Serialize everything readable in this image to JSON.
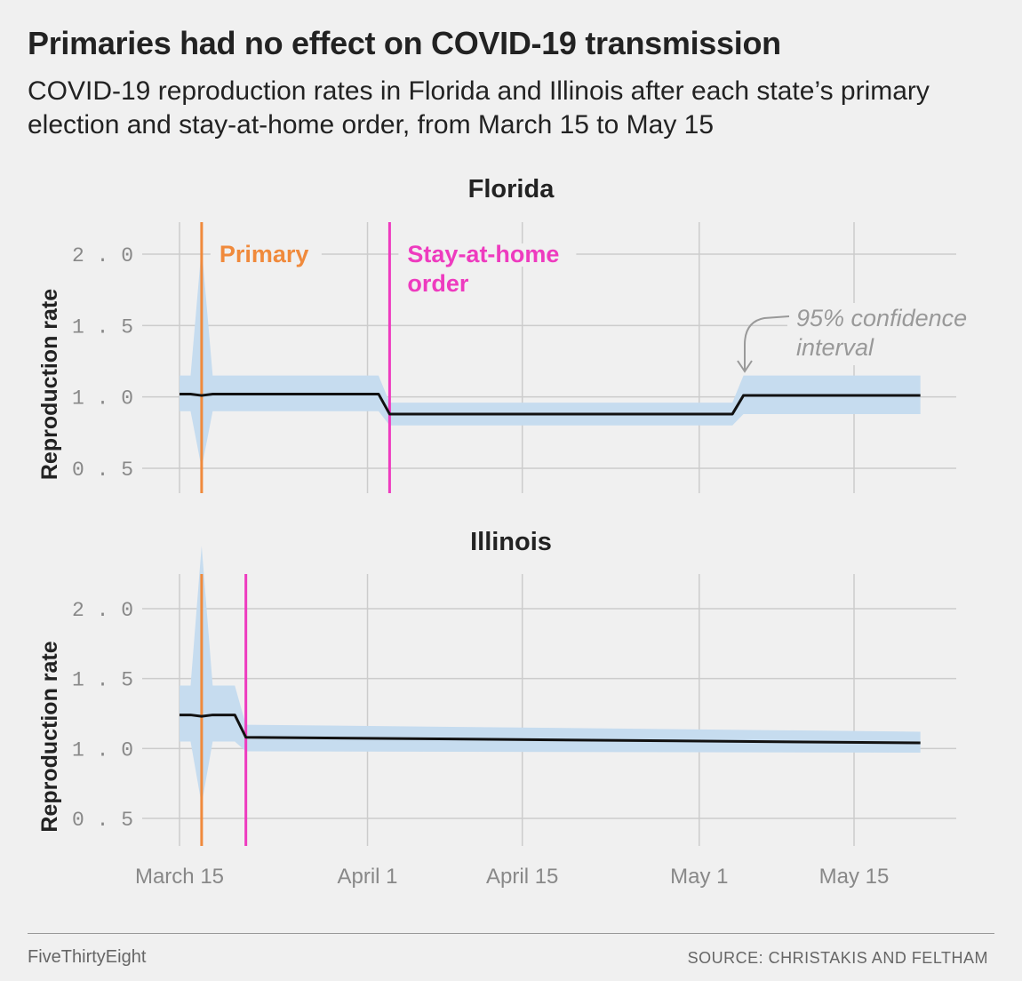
{
  "title": "Primaries had no effect on COVID-19 transmission",
  "subtitle": "COVID-19 reproduction rates in Florida and Illinois after each state’s primary election and stay-at-home order, from March 15 to May 15",
  "footer": {
    "brand": "FiveThirtyEight",
    "source": "SOURCE: CHRISTAKIS AND FELTHAM"
  },
  "colors": {
    "primary": "#f08a3c",
    "stay_at_home": "#ee3bbf",
    "band": "#c6dcef",
    "line": "#111111",
    "grid": "#cccccc"
  },
  "chart_data": [
    {
      "type": "line",
      "title": "Florida",
      "ylabel": "Reproduction rate",
      "ylim": [
        0.35,
        2.3
      ],
      "yticks": [
        {
          "value": 0.5,
          "label": "0.5"
        },
        {
          "value": 1.0,
          "label": "1.0"
        },
        {
          "value": 1.5,
          "label": "1.5"
        },
        {
          "value": 2.0,
          "label": "2.0"
        }
      ],
      "x_domain": [
        "2020-03-14",
        "2020-05-24"
      ],
      "xticks": [
        {
          "date": "2020-03-15",
          "label": "March 15"
        },
        {
          "date": "2020-04-01",
          "label": "April 1"
        },
        {
          "date": "2020-04-15",
          "label": "April 15"
        },
        {
          "date": "2020-05-01",
          "label": "May 1"
        },
        {
          "date": "2020-05-15",
          "label": "May 15"
        }
      ],
      "show_xtick_labels": false,
      "events": [
        {
          "date": "2020-03-17",
          "label": "Primary",
          "kind": "primary"
        },
        {
          "date": "2020-04-03",
          "label": "Stay-at-home\norder",
          "kind": "stay_at_home"
        }
      ],
      "series": {
        "x": [
          "2020-03-15",
          "2020-03-16",
          "2020-03-17",
          "2020-03-18",
          "2020-04-02",
          "2020-04-03",
          "2020-05-04",
          "2020-05-05",
          "2020-05-21"
        ],
        "y": [
          1.02,
          1.02,
          1.01,
          1.02,
          1.02,
          0.88,
          0.88,
          1.01,
          1.01
        ],
        "lower": [
          0.9,
          0.9,
          0.5,
          0.9,
          0.9,
          0.8,
          0.8,
          0.88,
          0.88
        ],
        "upper": [
          1.15,
          1.15,
          2.05,
          1.15,
          1.15,
          0.96,
          0.96,
          1.15,
          1.15
        ]
      },
      "annotation": {
        "text": "95% confidence\ninterval"
      }
    },
    {
      "type": "line",
      "title": "Illinois",
      "ylabel": "Reproduction rate",
      "ylim": [
        0.35,
        2.3
      ],
      "yticks": [
        {
          "value": 0.5,
          "label": "0.5"
        },
        {
          "value": 1.0,
          "label": "1.0"
        },
        {
          "value": 1.5,
          "label": "1.5"
        },
        {
          "value": 2.0,
          "label": "2.0"
        }
      ],
      "x_domain": [
        "2020-03-14",
        "2020-05-24"
      ],
      "xticks": [
        {
          "date": "2020-03-15",
          "label": "March 15"
        },
        {
          "date": "2020-04-01",
          "label": "April 1"
        },
        {
          "date": "2020-04-15",
          "label": "April 15"
        },
        {
          "date": "2020-05-01",
          "label": "May 1"
        },
        {
          "date": "2020-05-15",
          "label": "May 15"
        }
      ],
      "show_xtick_labels": true,
      "events": [
        {
          "date": "2020-03-17",
          "label": "",
          "kind": "primary"
        },
        {
          "date": "2020-03-21",
          "label": "",
          "kind": "stay_at_home"
        }
      ],
      "series": {
        "x": [
          "2020-03-15",
          "2020-03-16",
          "2020-03-17",
          "2020-03-18",
          "2020-03-20",
          "2020-03-21",
          "2020-05-21"
        ],
        "y": [
          1.24,
          1.24,
          1.23,
          1.24,
          1.24,
          1.08,
          1.04
        ],
        "lower": [
          1.05,
          1.05,
          0.6,
          1.05,
          1.05,
          0.98,
          0.97
        ],
        "upper": [
          1.45,
          1.45,
          2.45,
          1.45,
          1.45,
          1.17,
          1.12
        ]
      }
    }
  ]
}
